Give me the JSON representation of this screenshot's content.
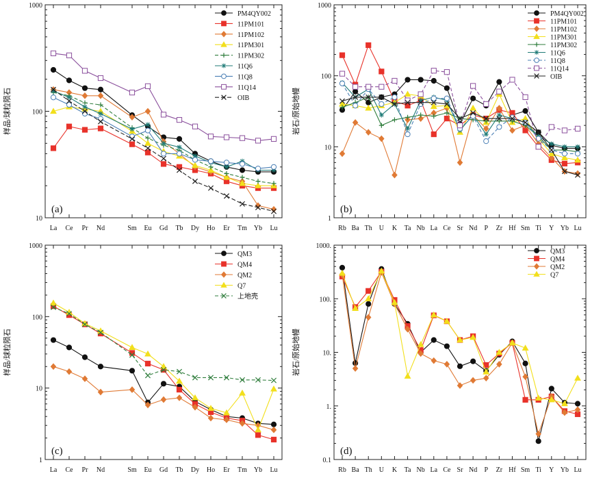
{
  "chart_data": [
    {
      "type": "line",
      "yscale": "log",
      "ylim": [
        10,
        1000
      ],
      "yticks": [
        "10",
        "100",
        "1000"
      ],
      "ylabel": "样品/球粒陨石",
      "panel_label": "(a)",
      "legend": "top-right",
      "categories": [
        "La",
        "Ce",
        "Pr",
        "Nd",
        "Sm",
        "Eu",
        "Gd",
        "Tb",
        "Dy",
        "Ho",
        "Er",
        "Tm",
        "Yb",
        "Lu"
      ],
      "x_index": [
        0,
        1,
        2,
        3,
        5,
        6,
        7,
        8,
        9,
        10,
        11,
        12,
        13,
        14
      ],
      "series": [
        {
          "name": "PM4QY002",
          "color": "#111111",
          "marker": "circle",
          "dash": "",
          "values": [
            245,
            195,
            165,
            160,
            92,
            72,
            57,
            55,
            40,
            34,
            30,
            28,
            27,
            27
          ]
        },
        {
          "name": "11PM101",
          "color": "#e8322a",
          "marker": "square",
          "dash": "",
          "values": [
            45,
            72,
            67,
            69,
            49,
            41,
            32,
            30,
            28,
            26,
            22,
            20,
            19,
            19
          ]
        },
        {
          "name": "11PM102",
          "color": "#e07a35",
          "marker": "diamond",
          "dash": "",
          "values": [
            160,
            150,
            140,
            140,
            88,
            100,
            52,
            40,
            30,
            27,
            24,
            22,
            13,
            12
          ]
        },
        {
          "name": "11PM301",
          "color": "#f2df1c",
          "marker": "triangle",
          "dash": "",
          "values": [
            100,
            110,
            105,
            100,
            65,
            50,
            42,
            38,
            31,
            28,
            24,
            21,
            20,
            20
          ]
        },
        {
          "name": "11PM302",
          "color": "#2f7d3c",
          "marker": "plus",
          "dash": "5,3",
          "values": [
            150,
            140,
            120,
            115,
            70,
            56,
            48,
            43,
            35,
            30,
            26,
            24,
            22,
            21
          ]
        },
        {
          "name": "11Q6",
          "color": "#1e7a76",
          "marker": "star",
          "dash": "",
          "values": [
            155,
            135,
            110,
            95,
            68,
            75,
            50,
            46,
            38,
            33,
            30,
            34,
            28,
            28
          ]
        },
        {
          "name": "11Q8",
          "color": "#4a7fb5",
          "marker": "ocircle",
          "dash": "",
          "values": [
            135,
            115,
            95,
            85,
            58,
            66,
            40,
            40,
            35,
            34,
            33,
            32,
            29,
            30
          ]
        },
        {
          "name": "11Q14",
          "color": "#8a4f9c",
          "marker": "osquare",
          "dash": "",
          "values": [
            350,
            335,
            240,
            205,
            150,
            172,
            93,
            83,
            72,
            58,
            57,
            56,
            53,
            55
          ]
        },
        {
          "name": "OIB",
          "color": "#222222",
          "marker": "x",
          "dash": "6,3",
          "values": [
            160,
            125,
            100,
            80,
            55,
            45,
            36,
            28,
            22,
            19,
            16,
            13.5,
            12.5,
            11.5
          ]
        }
      ]
    },
    {
      "type": "line",
      "yscale": "log",
      "ylim": [
        1,
        1000
      ],
      "yticks": [
        "1",
        "10",
        "100",
        "1000"
      ],
      "ylabel": "岩石/原始地幔",
      "panel_label": "(b)",
      "legend": "top-right",
      "categories": [
        "Rb",
        "Ba",
        "Th",
        "U",
        "K",
        "Ta",
        "Nb",
        "La",
        "Ce",
        "Sr",
        "Nd",
        "P",
        "Zr",
        "Hf",
        "Sm",
        "Ti",
        "Y",
        "Yb",
        "Lu"
      ],
      "x_index": [
        0,
        1,
        2,
        3,
        4,
        5,
        6,
        7,
        8,
        9,
        10,
        11,
        12,
        13,
        14,
        15,
        16,
        17,
        18
      ],
      "series": [
        {
          "name": "PM4QY002",
          "color": "#111111",
          "marker": "circle",
          "dash": "",
          "values": [
            33,
            60,
            42,
            50,
            55,
            88,
            88,
            85,
            67,
            21,
            48,
            38,
            82,
            28,
            32,
            16,
            10.5,
            9.5,
            9.5
          ]
        },
        {
          "name": "11PM101",
          "color": "#e8322a",
          "marker": "square",
          "dash": "",
          "values": [
            195,
            75,
            270,
            115,
            44,
            38,
            45,
            15,
            25,
            20,
            28,
            25,
            33,
            30,
            17,
            10,
            6.5,
            5.8,
            6.0
          ]
        },
        {
          "name": "11PM102",
          "color": "#e07a35",
          "marker": "diamond",
          "dash": "",
          "values": [
            8,
            22,
            16,
            13,
            4,
            24,
            25,
            30,
            35,
            6,
            28,
            18,
            35,
            17,
            20,
            11,
            7,
            4.5,
            4.2
          ]
        },
        {
          "name": "11PM301",
          "color": "#f2df1c",
          "marker": "triangle",
          "dash": "",
          "values": [
            40,
            38,
            35,
            38,
            42,
            55,
            52,
            37,
            38,
            16,
            35,
            22,
            55,
            22,
            25,
            13,
            8,
            7,
            6.5
          ]
        },
        {
          "name": "11PM302",
          "color": "#2f7d3c",
          "marker": "plus",
          "dash": "",
          "values": [
            36,
            42,
            50,
            20,
            24,
            26,
            28,
            27,
            30,
            25,
            24,
            23,
            23,
            23,
            20,
            14,
            9,
            9,
            8.5
          ]
        },
        {
          "name": "11Q6",
          "color": "#1e7a76",
          "marker": "star",
          "dash": "",
          "values": [
            80,
            50,
            65,
            28,
            40,
            18,
            45,
            50,
            45,
            17,
            28,
            15,
            28,
            25,
            22,
            14,
            11,
            10,
            10
          ]
        },
        {
          "name": "11Q8",
          "color": "#4a7fb5",
          "marker": "ocircle",
          "dash": "5,3",
          "values": [
            78,
            38,
            65,
            40,
            50,
            15,
            40,
            48,
            48,
            18,
            27,
            12,
            19,
            26,
            22,
            13,
            9,
            8,
            8
          ]
        },
        {
          "name": "11Q14",
          "color": "#8a4f9c",
          "marker": "osquare",
          "dash": "5,3",
          "values": [
            107,
            70,
            70,
            70,
            85,
            45,
            55,
            118,
            113,
            20,
            72,
            40,
            60,
            88,
            50,
            10,
            19,
            17,
            18
          ]
        },
        {
          "name": "OIB",
          "color": "#222222",
          "marker": "x",
          "dash": "",
          "values": [
            44,
            50,
            50,
            50,
            40,
            42,
            42,
            42,
            40,
            25,
            30,
            25,
            25,
            25,
            22,
            16,
            9,
            4.5,
            4.0
          ]
        }
      ]
    },
    {
      "type": "line",
      "yscale": "log",
      "ylim": [
        1,
        1000
      ],
      "yticks": [
        "1",
        "10",
        "100",
        "1000"
      ],
      "ylabel": "样品/球粒陨石",
      "panel_label": "(c)",
      "legend": "top-right",
      "categories": [
        "La",
        "Ce",
        "Pr",
        "Nd",
        "Sm",
        "Eu",
        "Gd",
        "Tb",
        "Dy",
        "Ho",
        "Er",
        "Tm",
        "Yb",
        "Lu"
      ],
      "x_index": [
        0,
        1,
        2,
        3,
        5,
        6,
        7,
        8,
        9,
        10,
        11,
        12,
        13,
        14
      ],
      "series": [
        {
          "name": "QM3",
          "color": "#111111",
          "marker": "circle",
          "dash": "",
          "values": [
            47,
            37,
            27,
            20,
            17.5,
            6.3,
            11.5,
            10.5,
            6.5,
            5,
            4,
            3.8,
            3.2,
            3.1
          ]
        },
        {
          "name": "QM4",
          "color": "#e8322a",
          "marker": "square",
          "dash": "",
          "values": [
            140,
            105,
            78,
            58,
            31,
            22,
            18,
            9.5,
            6,
            4.6,
            3.8,
            3.5,
            2.2,
            1.9
          ]
        },
        {
          "name": "QM2",
          "color": "#e07a35",
          "marker": "diamond",
          "dash": "",
          "values": [
            20,
            17,
            13.5,
            8.8,
            9.5,
            5.8,
            6.9,
            7.3,
            5.4,
            3.8,
            3.6,
            3.2,
            3.0,
            2.6
          ]
        },
        {
          "name": "Q7",
          "color": "#f2df1c",
          "marker": "triangle",
          "dash": "",
          "values": [
            155,
            115,
            80,
            63,
            37,
            30,
            20,
            12.5,
            7.3,
            5.2,
            4.5,
            8.5,
            2.6,
            9.7
          ]
        },
        {
          "name": "上地壳",
          "color": "#2f7d3c",
          "marker": "x",
          "dash": "5,3",
          "values": [
            135,
            110,
            78,
            60,
            29,
            15,
            18,
            17,
            14,
            14,
            14,
            13,
            13,
            12.8
          ]
        }
      ]
    },
    {
      "type": "line",
      "yscale": "log",
      "ylim": [
        0.1,
        1000
      ],
      "yticks": [
        "0.1",
        "1.",
        "10.",
        "100.",
        "1000."
      ],
      "ylabel": "岩石/原始地幔",
      "panel_label": "(d)",
      "legend": "top-right",
      "categories": [
        "Rb",
        "Ba",
        "Th",
        "U",
        "K",
        "Ta",
        "Nb",
        "La",
        "Ce",
        "Sr",
        "Nd",
        "P",
        "Zr",
        "Hf",
        "Sm",
        "Ti",
        "Y",
        "Yb",
        "Lu"
      ],
      "x_index": [
        0,
        1,
        2,
        3,
        4,
        5,
        6,
        7,
        8,
        9,
        10,
        11,
        12,
        13,
        14,
        15,
        16,
        17,
        18
      ],
      "series": [
        {
          "name": "QM3",
          "color": "#111111",
          "marker": "circle",
          "dash": "",
          "values": [
            380,
            6.3,
            80,
            360,
            80,
            34,
            10,
            17,
            13,
            5.5,
            6.8,
            4.5,
            9,
            16,
            6.2,
            0.22,
            2.1,
            1.15,
            1.1
          ]
        },
        {
          "name": "QM4",
          "color": "#e8322a",
          "marker": "square",
          "dash": "",
          "values": [
            260,
            70,
            140,
            320,
            95,
            31,
            11,
            49,
            38,
            17,
            20,
            5.8,
            9.5,
            15,
            1.3,
            1.3,
            1.5,
            0.8,
            0.7
          ]
        },
        {
          "name": "QM2",
          "color": "#e07a35",
          "marker": "diamond",
          "dash": "",
          "values": [
            280,
            5,
            45,
            310,
            80,
            27,
            9.5,
            7,
            6,
            2.4,
            3,
            3.3,
            6,
            15,
            3.5,
            0.3,
            1.5,
            0.75,
            0.85
          ]
        },
        {
          "name": "Q7",
          "color": "#f2df1c",
          "marker": "triangle",
          "dash": "",
          "values": [
            300,
            66,
            100,
            330,
            85,
            3.6,
            14,
            50,
            38,
            17,
            19,
            4.3,
            10,
            15,
            12,
            1.4,
            1.3,
            1.1,
            3.3
          ]
        }
      ]
    }
  ]
}
